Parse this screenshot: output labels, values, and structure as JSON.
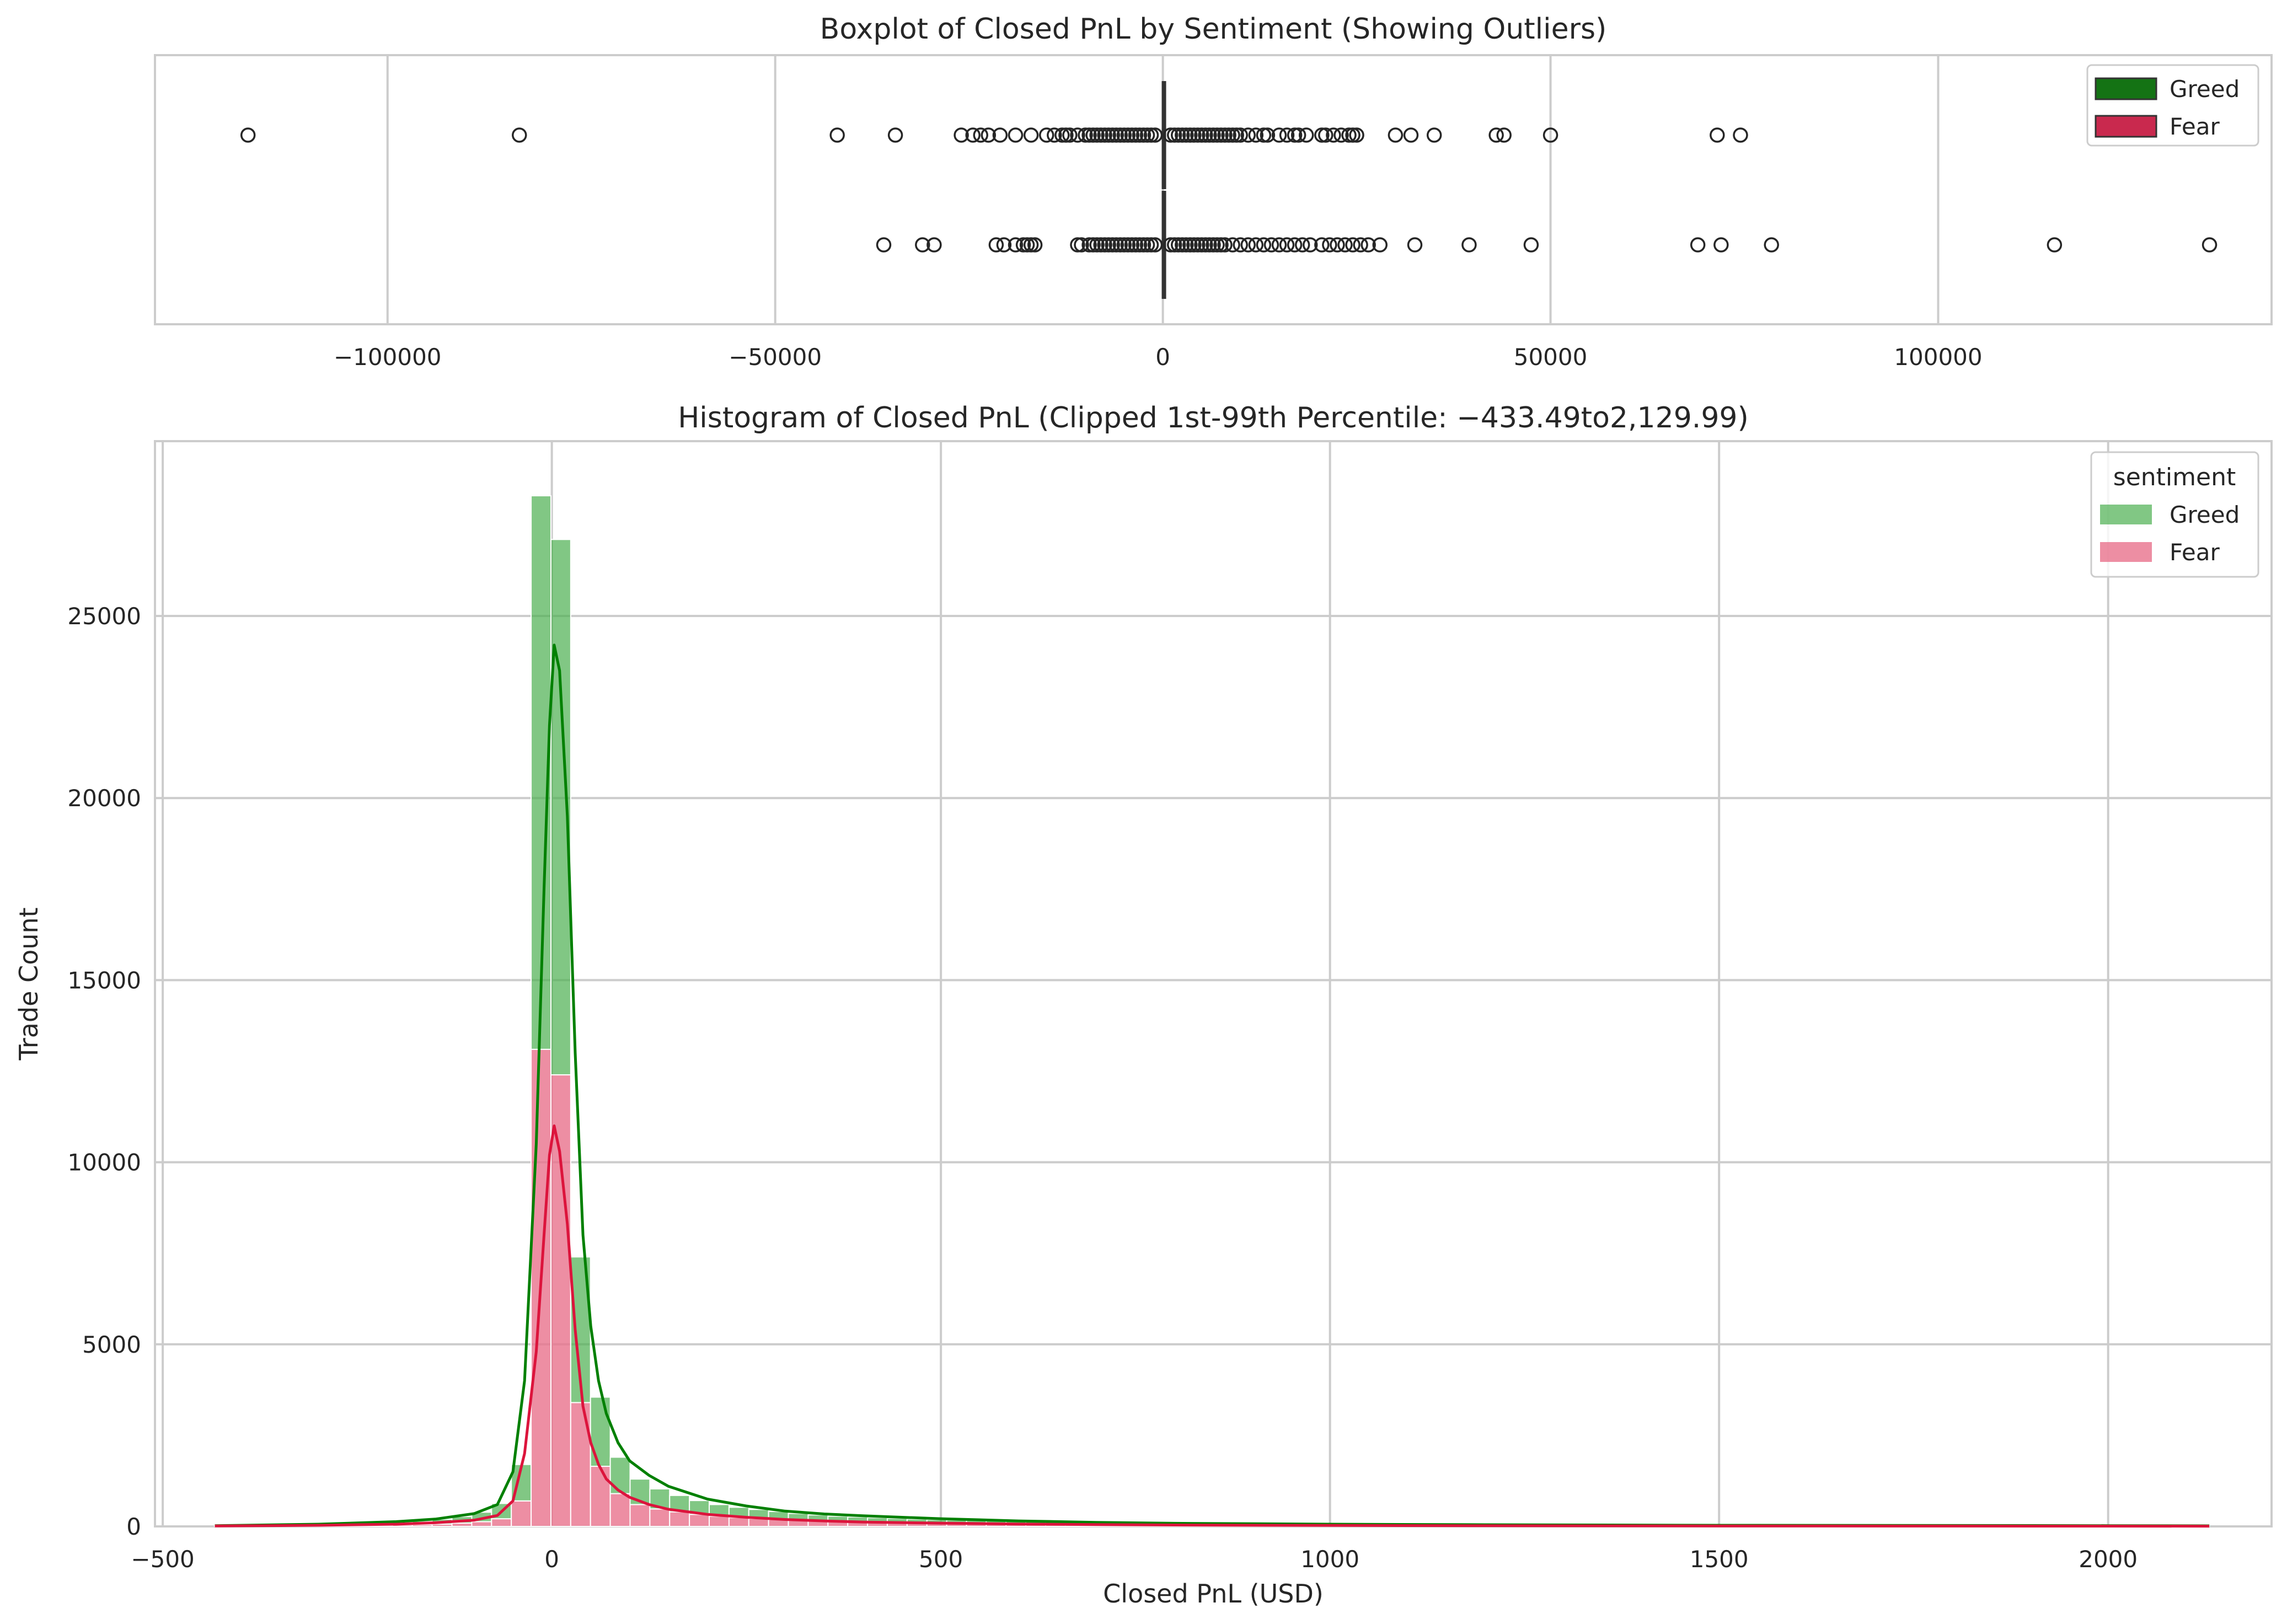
{
  "chart_data": [
    {
      "type": "box",
      "title": "Boxplot of Closed PnL by Sentiment (Showing Outliers)",
      "xlabel": "",
      "ylabel": "",
      "xlim": [
        -130000,
        143000
      ],
      "x_ticks": [
        -100000,
        -50000,
        0,
        50000,
        100000
      ],
      "x_tick_labels": [
        "−100000",
        "−50000",
        "0",
        "50000",
        "100000"
      ],
      "grid": true,
      "legend_position": "top-right",
      "legend": [
        {
          "name": "Greed",
          "color": "#147314"
        },
        {
          "name": "Fear",
          "color": "#c9294e"
        }
      ],
      "series": [
        {
          "name": "Greed",
          "color": "#147314",
          "whisker_low": -150,
          "q1": -5,
          "median": 0,
          "q3": 10,
          "whisker_high": 200,
          "outliers": [
            -118000,
            -83000,
            -42000,
            -34500,
            -26000,
            -24500,
            -23500,
            -22500,
            -21000,
            -19000,
            -17000,
            -15000,
            -14000,
            -13000,
            -12500,
            -12000,
            -11000,
            -10000,
            -9500,
            -9000,
            -8500,
            -8000,
            -7500,
            -7000,
            -6500,
            -6000,
            -5500,
            -5000,
            -4500,
            -4000,
            -3500,
            -3000,
            -2500,
            -2000,
            -1500,
            -1000,
            1000,
            1500,
            2000,
            2500,
            3000,
            3500,
            4000,
            4500,
            5000,
            5500,
            6000,
            6500,
            7000,
            7500,
            8000,
            8500,
            9000,
            9500,
            10000,
            11000,
            12000,
            13000,
            13500,
            15000,
            16000,
            17000,
            17500,
            18500,
            20500,
            21000,
            22000,
            23000,
            24000,
            24500,
            25000,
            30000,
            32000,
            35000,
            43000,
            44000,
            50000,
            71500,
            74500
          ]
        },
        {
          "name": "Fear",
          "color": "#c9294e",
          "whisker_low": -150,
          "q1": -5,
          "median": 0,
          "q3": 10,
          "whisker_high": 200,
          "outliers": [
            -36000,
            -31000,
            -29500,
            -21500,
            -20500,
            -19000,
            -18000,
            -17500,
            -17000,
            -16500,
            -11000,
            -10500,
            -9500,
            -9000,
            -8500,
            -8000,
            -7500,
            -7000,
            -6500,
            -6000,
            -5500,
            -5000,
            -4500,
            -4000,
            -3500,
            -3000,
            -2500,
            -2000,
            -1500,
            -1000,
            1000,
            1500,
            2000,
            2500,
            3000,
            3500,
            4000,
            4500,
            5000,
            5500,
            6000,
            6500,
            7000,
            7500,
            8000,
            9000,
            10000,
            11000,
            12000,
            13000,
            14000,
            15000,
            16000,
            17000,
            18000,
            19000,
            20500,
            21500,
            22500,
            23500,
            24500,
            25500,
            26500,
            28000,
            32500,
            39500,
            47500,
            69000,
            72000,
            78500,
            115000,
            135000
          ]
        }
      ]
    },
    {
      "type": "histogram",
      "title": "Histogram of Closed PnL (Clipped 1st-99th Percentile: −433.49to2,129.99)",
      "xlabel": "Closed PnL (USD)",
      "ylabel": "Trade Count",
      "xlim": [
        -510,
        2210
      ],
      "ylim": [
        0,
        29800
      ],
      "x_ticks": [
        -500,
        0,
        500,
        1000,
        1500,
        2000
      ],
      "x_tick_labels": [
        "−500",
        "0",
        "500",
        "1000",
        "1500",
        "2000"
      ],
      "y_ticks": [
        0,
        5000,
        10000,
        15000,
        20000,
        25000
      ],
      "y_tick_labels": [
        "0",
        "5000",
        "10000",
        "15000",
        "20000",
        "25000"
      ],
      "grid": true,
      "stacked": true,
      "legend_title": "sentiment",
      "legend_position": "top-right",
      "bin_edges": [
        -433.49,
        -408.06,
        -382.63,
        -357.2,
        -331.77,
        -306.34,
        -280.91,
        -255.48,
        -230.05,
        -204.62,
        -179.19,
        -153.76,
        -128.33,
        -102.9,
        -77.47,
        -52.04,
        -26.61,
        -1.18,
        24.25,
        49.68,
        75.11,
        100.54,
        125.97,
        151.4,
        176.83,
        202.26,
        227.69,
        253.12,
        278.55,
        303.98,
        329.41,
        354.84,
        380.27,
        405.7,
        431.13,
        456.56,
        481.99,
        507.42,
        532.85,
        558.28,
        583.71,
        609.14,
        634.57,
        660.0,
        685.43,
        710.86,
        736.29,
        761.72,
        787.15,
        812.58,
        838.01,
        863.44,
        888.87,
        914.3,
        939.73,
        965.16,
        990.59,
        1016.02,
        1041.45,
        1066.88,
        1092.31,
        1117.74,
        1143.17,
        1168.6,
        1194.03,
        1219.46,
        1244.89,
        1270.32,
        1295.75,
        1321.18,
        1346.61,
        1372.04,
        1397.47,
        1422.9,
        1448.33,
        1473.76,
        1499.19,
        1524.62,
        1550.05,
        1575.48,
        1600.91,
        1626.34,
        1651.77,
        1677.2,
        1702.63,
        1728.06,
        1753.49,
        1778.92,
        1804.35,
        1829.78,
        1855.21,
        1880.64,
        1906.07,
        1931.5,
        1956.93,
        1982.36,
        2007.79,
        2033.22,
        2058.65,
        2084.08,
        2129.99
      ],
      "series": [
        {
          "name": "Greed",
          "color": "#4caf50",
          "kde_color": "#008000",
          "counts": [
            20,
            22,
            25,
            28,
            32,
            36,
            42,
            50,
            60,
            75,
            95,
            130,
            180,
            260,
            420,
            1000,
            15200,
            14700,
            4000,
            1900,
            1000,
            700,
            550,
            450,
            380,
            320,
            280,
            250,
            220,
            190,
            170,
            150,
            140,
            130,
            120,
            110,
            100,
            95,
            90,
            85,
            80,
            75,
            70,
            65,
            62,
            58,
            55,
            52,
            50,
            48,
            45,
            43,
            41,
            39,
            37,
            35,
            34,
            33,
            32,
            31,
            30,
            29,
            28,
            27,
            26,
            25,
            24,
            23,
            22,
            22,
            21,
            20,
            20,
            19,
            19,
            18,
            18,
            17,
            17,
            16,
            16,
            15,
            15,
            14,
            14,
            14,
            13,
            13,
            13,
            12,
            12,
            12,
            11,
            11,
            11,
            10,
            10,
            10,
            10,
            10
          ],
          "kde": [
            [
              -433,
              20
            ],
            [
              -300,
              60
            ],
            [
              -200,
              130
            ],
            [
              -150,
              200
            ],
            [
              -100,
              350
            ],
            [
              -70,
              600
            ],
            [
              -50,
              1500
            ],
            [
              -35,
              4000
            ],
            [
              -20,
              10500
            ],
            [
              -10,
              17500
            ],
            [
              -3,
              22000
            ],
            [
              3,
              24200
            ],
            [
              10,
              23500
            ],
            [
              20,
              19500
            ],
            [
              30,
              13000
            ],
            [
              40,
              8000
            ],
            [
              50,
              5500
            ],
            [
              60,
              4000
            ],
            [
              70,
              3100
            ],
            [
              85,
              2300
            ],
            [
              100,
              1800
            ],
            [
              125,
              1400
            ],
            [
              150,
              1100
            ],
            [
              200,
              750
            ],
            [
              250,
              560
            ],
            [
              300,
              420
            ],
            [
              350,
              340
            ],
            [
              400,
              290
            ],
            [
              500,
              210
            ],
            [
              600,
              150
            ],
            [
              700,
              110
            ],
            [
              800,
              85
            ],
            [
              1000,
              60
            ],
            [
              1200,
              45
            ],
            [
              1500,
              30
            ],
            [
              2000,
              20
            ],
            [
              2130,
              15
            ]
          ]
        },
        {
          "name": "Fear",
          "color": "#e8728c",
          "kde_color": "#dc143c",
          "counts": [
            10,
            11,
            12,
            14,
            16,
            18,
            21,
            25,
            30,
            38,
            48,
            65,
            90,
            130,
            210,
            700,
            13100,
            12400,
            3400,
            1650,
            900,
            600,
            480,
            400,
            330,
            280,
            245,
            215,
            190,
            165,
            145,
            130,
            120,
            110,
            100,
            90,
            85,
            80,
            75,
            70,
            65,
            60,
            56,
            52,
            49,
            46,
            43,
            40,
            38,
            36,
            34,
            32,
            30,
            29,
            28,
            27,
            26,
            25,
            24,
            23,
            22,
            21,
            20,
            19,
            18,
            18,
            17,
            17,
            16,
            16,
            15,
            15,
            14,
            14,
            13,
            13,
            12,
            12,
            12,
            11,
            11,
            11,
            10,
            10,
            10,
            9,
            9,
            9,
            9,
            8,
            8,
            8,
            8,
            7,
            7,
            7,
            7,
            6,
            6,
            6
          ],
          "kde": [
            [
              -433,
              10
            ],
            [
              -300,
              30
            ],
            [
              -200,
              60
            ],
            [
              -150,
              100
            ],
            [
              -100,
              170
            ],
            [
              -70,
              300
            ],
            [
              -50,
              700
            ],
            [
              -35,
              2000
            ],
            [
              -20,
              4800
            ],
            [
              -10,
              8000
            ],
            [
              -3,
              10200
            ],
            [
              3,
              11000
            ],
            [
              10,
              10300
            ],
            [
              20,
              8300
            ],
            [
              30,
              5400
            ],
            [
              40,
              3300
            ],
            [
              50,
              2300
            ],
            [
              60,
              1700
            ],
            [
              70,
              1300
            ],
            [
              85,
              1000
            ],
            [
              100,
              800
            ],
            [
              125,
              600
            ],
            [
              150,
              470
            ],
            [
              200,
              330
            ],
            [
              250,
              250
            ],
            [
              300,
              190
            ],
            [
              350,
              150
            ],
            [
              400,
              120
            ],
            [
              500,
              90
            ],
            [
              600,
              65
            ],
            [
              700,
              50
            ],
            [
              800,
              38
            ],
            [
              1000,
              25
            ],
            [
              1200,
              18
            ],
            [
              1500,
              12
            ],
            [
              2000,
              8
            ],
            [
              2130,
              6
            ]
          ]
        }
      ]
    }
  ]
}
